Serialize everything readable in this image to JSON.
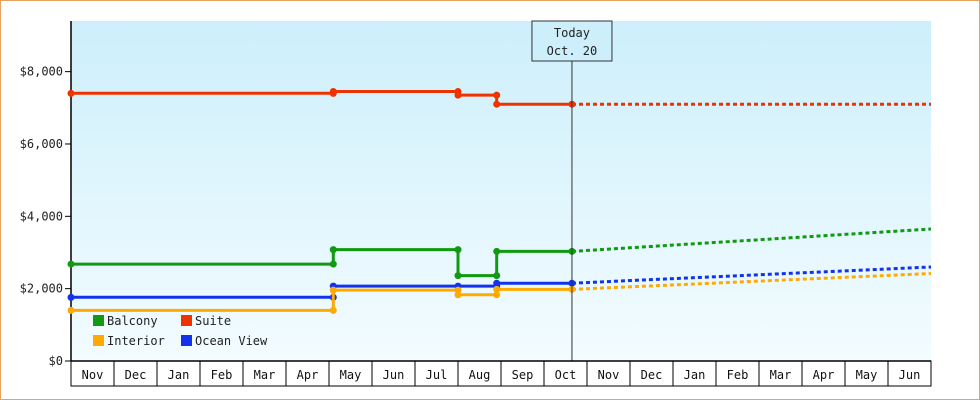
{
  "chart_data": {
    "type": "line",
    "title": "",
    "xlabel": "",
    "ylabel": "",
    "ylim": [
      0,
      9400
    ],
    "y_ticks": [
      0,
      2000,
      4000,
      6000,
      8000
    ],
    "y_tick_labels": [
      "$0",
      "$2,000",
      "$4,000",
      "$6,000",
      "$8,000"
    ],
    "x_tick_labels": [
      "Nov",
      "Dec",
      "Jan",
      "Feb",
      "Mar",
      "Apr",
      "May",
      "Jun",
      "Jul",
      "Aug",
      "Sep",
      "Oct",
      "Nov",
      "Dec",
      "Jan",
      "Feb",
      "Mar",
      "Apr",
      "May",
      "Jun"
    ],
    "x_unit": "months since start of the first Nov (0 = first Nov, 20 = end of the second Jun)",
    "grid": false,
    "background": "gradient light blue (top) to near white (bottom)",
    "today_marker": {
      "line1": "Today",
      "line2": "Oct. 20",
      "x": 11.65
    },
    "legend": {
      "placement": "bottom-left",
      "entries": [
        {
          "label": "Balcony",
          "color": "#119911"
        },
        {
          "label": "Suite",
          "color": "#ee3300"
        },
        {
          "label": "Interior",
          "color": "#ffaa00"
        },
        {
          "label": "Ocean View",
          "color": "#1133ee"
        }
      ]
    },
    "series": [
      {
        "name": "Suite",
        "color": "#ee3300",
        "points": [
          [
            0,
            7400
          ],
          [
            6.1,
            7400
          ],
          [
            6.1,
            7450
          ],
          [
            9.0,
            7450
          ],
          [
            9.0,
            7350
          ],
          [
            9.9,
            7350
          ],
          [
            9.9,
            7100
          ],
          [
            11.65,
            7100
          ]
        ],
        "forecast": [
          [
            11.65,
            7100
          ],
          [
            20,
            7100
          ]
        ]
      },
      {
        "name": "Balcony",
        "color": "#119911",
        "points": [
          [
            0,
            2680
          ],
          [
            6.1,
            2680
          ],
          [
            6.1,
            3080
          ],
          [
            9.0,
            3080
          ],
          [
            9.0,
            2360
          ],
          [
            9.9,
            2360
          ],
          [
            9.9,
            3030
          ],
          [
            11.65,
            3030
          ]
        ],
        "forecast": [
          [
            11.65,
            3030
          ],
          [
            20,
            3650
          ]
        ]
      },
      {
        "name": "Ocean View",
        "color": "#1133ee",
        "points": [
          [
            0,
            1760
          ],
          [
            6.1,
            1760
          ],
          [
            6.1,
            2070
          ],
          [
            9.0,
            2070
          ],
          [
            9.9,
            2070
          ],
          [
            9.9,
            2150
          ],
          [
            11.65,
            2150
          ]
        ],
        "forecast": [
          [
            11.65,
            2150
          ],
          [
            20,
            2600
          ]
        ]
      },
      {
        "name": "Interior",
        "color": "#ffaa00",
        "points": [
          [
            0,
            1400
          ],
          [
            6.1,
            1400
          ],
          [
            6.1,
            1960
          ],
          [
            9.0,
            1960
          ],
          [
            9.0,
            1830
          ],
          [
            9.9,
            1830
          ],
          [
            9.9,
            1980
          ],
          [
            11.65,
            1980
          ]
        ],
        "forecast": [
          [
            11.65,
            1980
          ],
          [
            20,
            2420
          ]
        ]
      }
    ]
  }
}
